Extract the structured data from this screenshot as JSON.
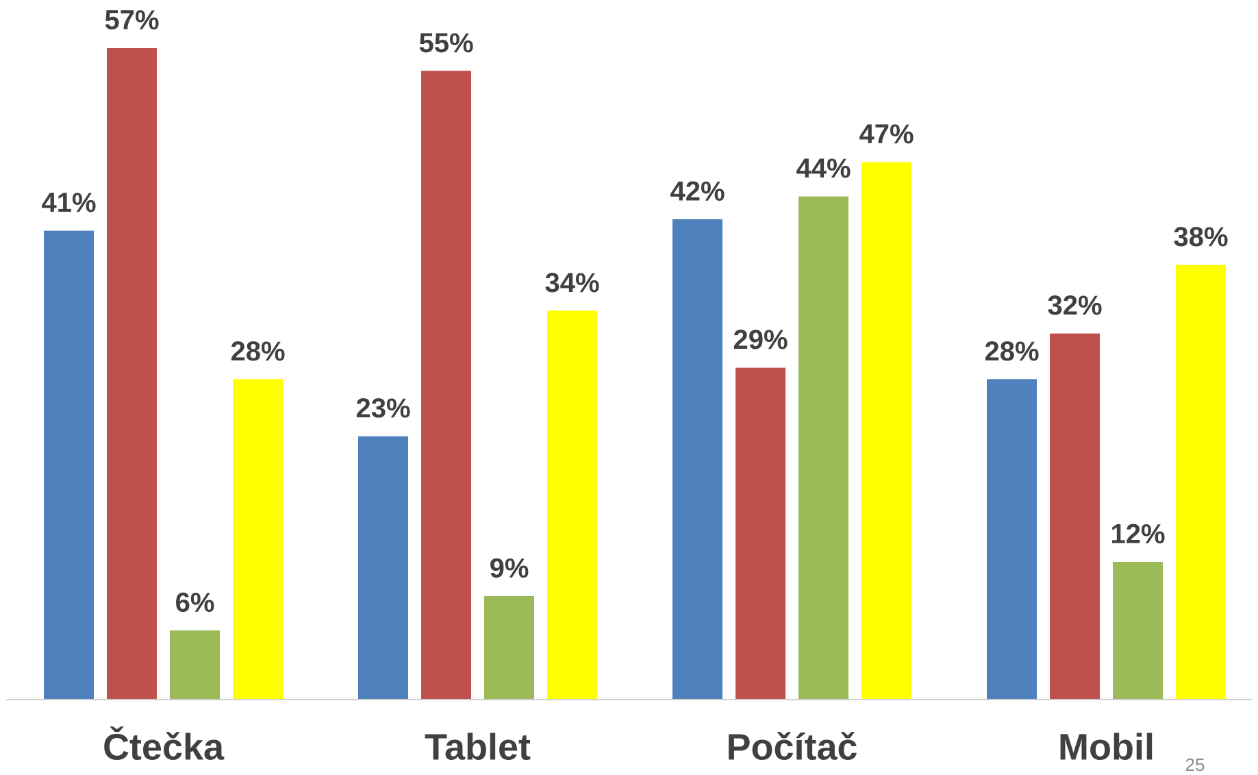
{
  "chart_data": {
    "type": "bar",
    "categories": [
      "Čtečka",
      "Tablet",
      "Počítač",
      "Mobil"
    ],
    "series": [
      {
        "color": "#4f81bd",
        "values": [
          41,
          23,
          42,
          28
        ],
        "value_labels": [
          "41%",
          "23%",
          "42%",
          "28%"
        ]
      },
      {
        "color": "#c0504d",
        "values": [
          57,
          55,
          29,
          32
        ],
        "value_labels": [
          "57%",
          "55%",
          "29%",
          "32%"
        ]
      },
      {
        "color": "#9bbb59",
        "values": [
          6,
          9,
          44,
          12
        ],
        "value_labels": [
          "6%",
          "9%",
          "44%",
          "12%"
        ]
      },
      {
        "color": "#ffff00",
        "values": [
          28,
          34,
          47,
          38
        ],
        "value_labels": [
          "28%",
          "34%",
          "47%",
          "38%"
        ]
      }
    ],
    "ylim": [
      0,
      60
    ]
  },
  "page_number": "25"
}
